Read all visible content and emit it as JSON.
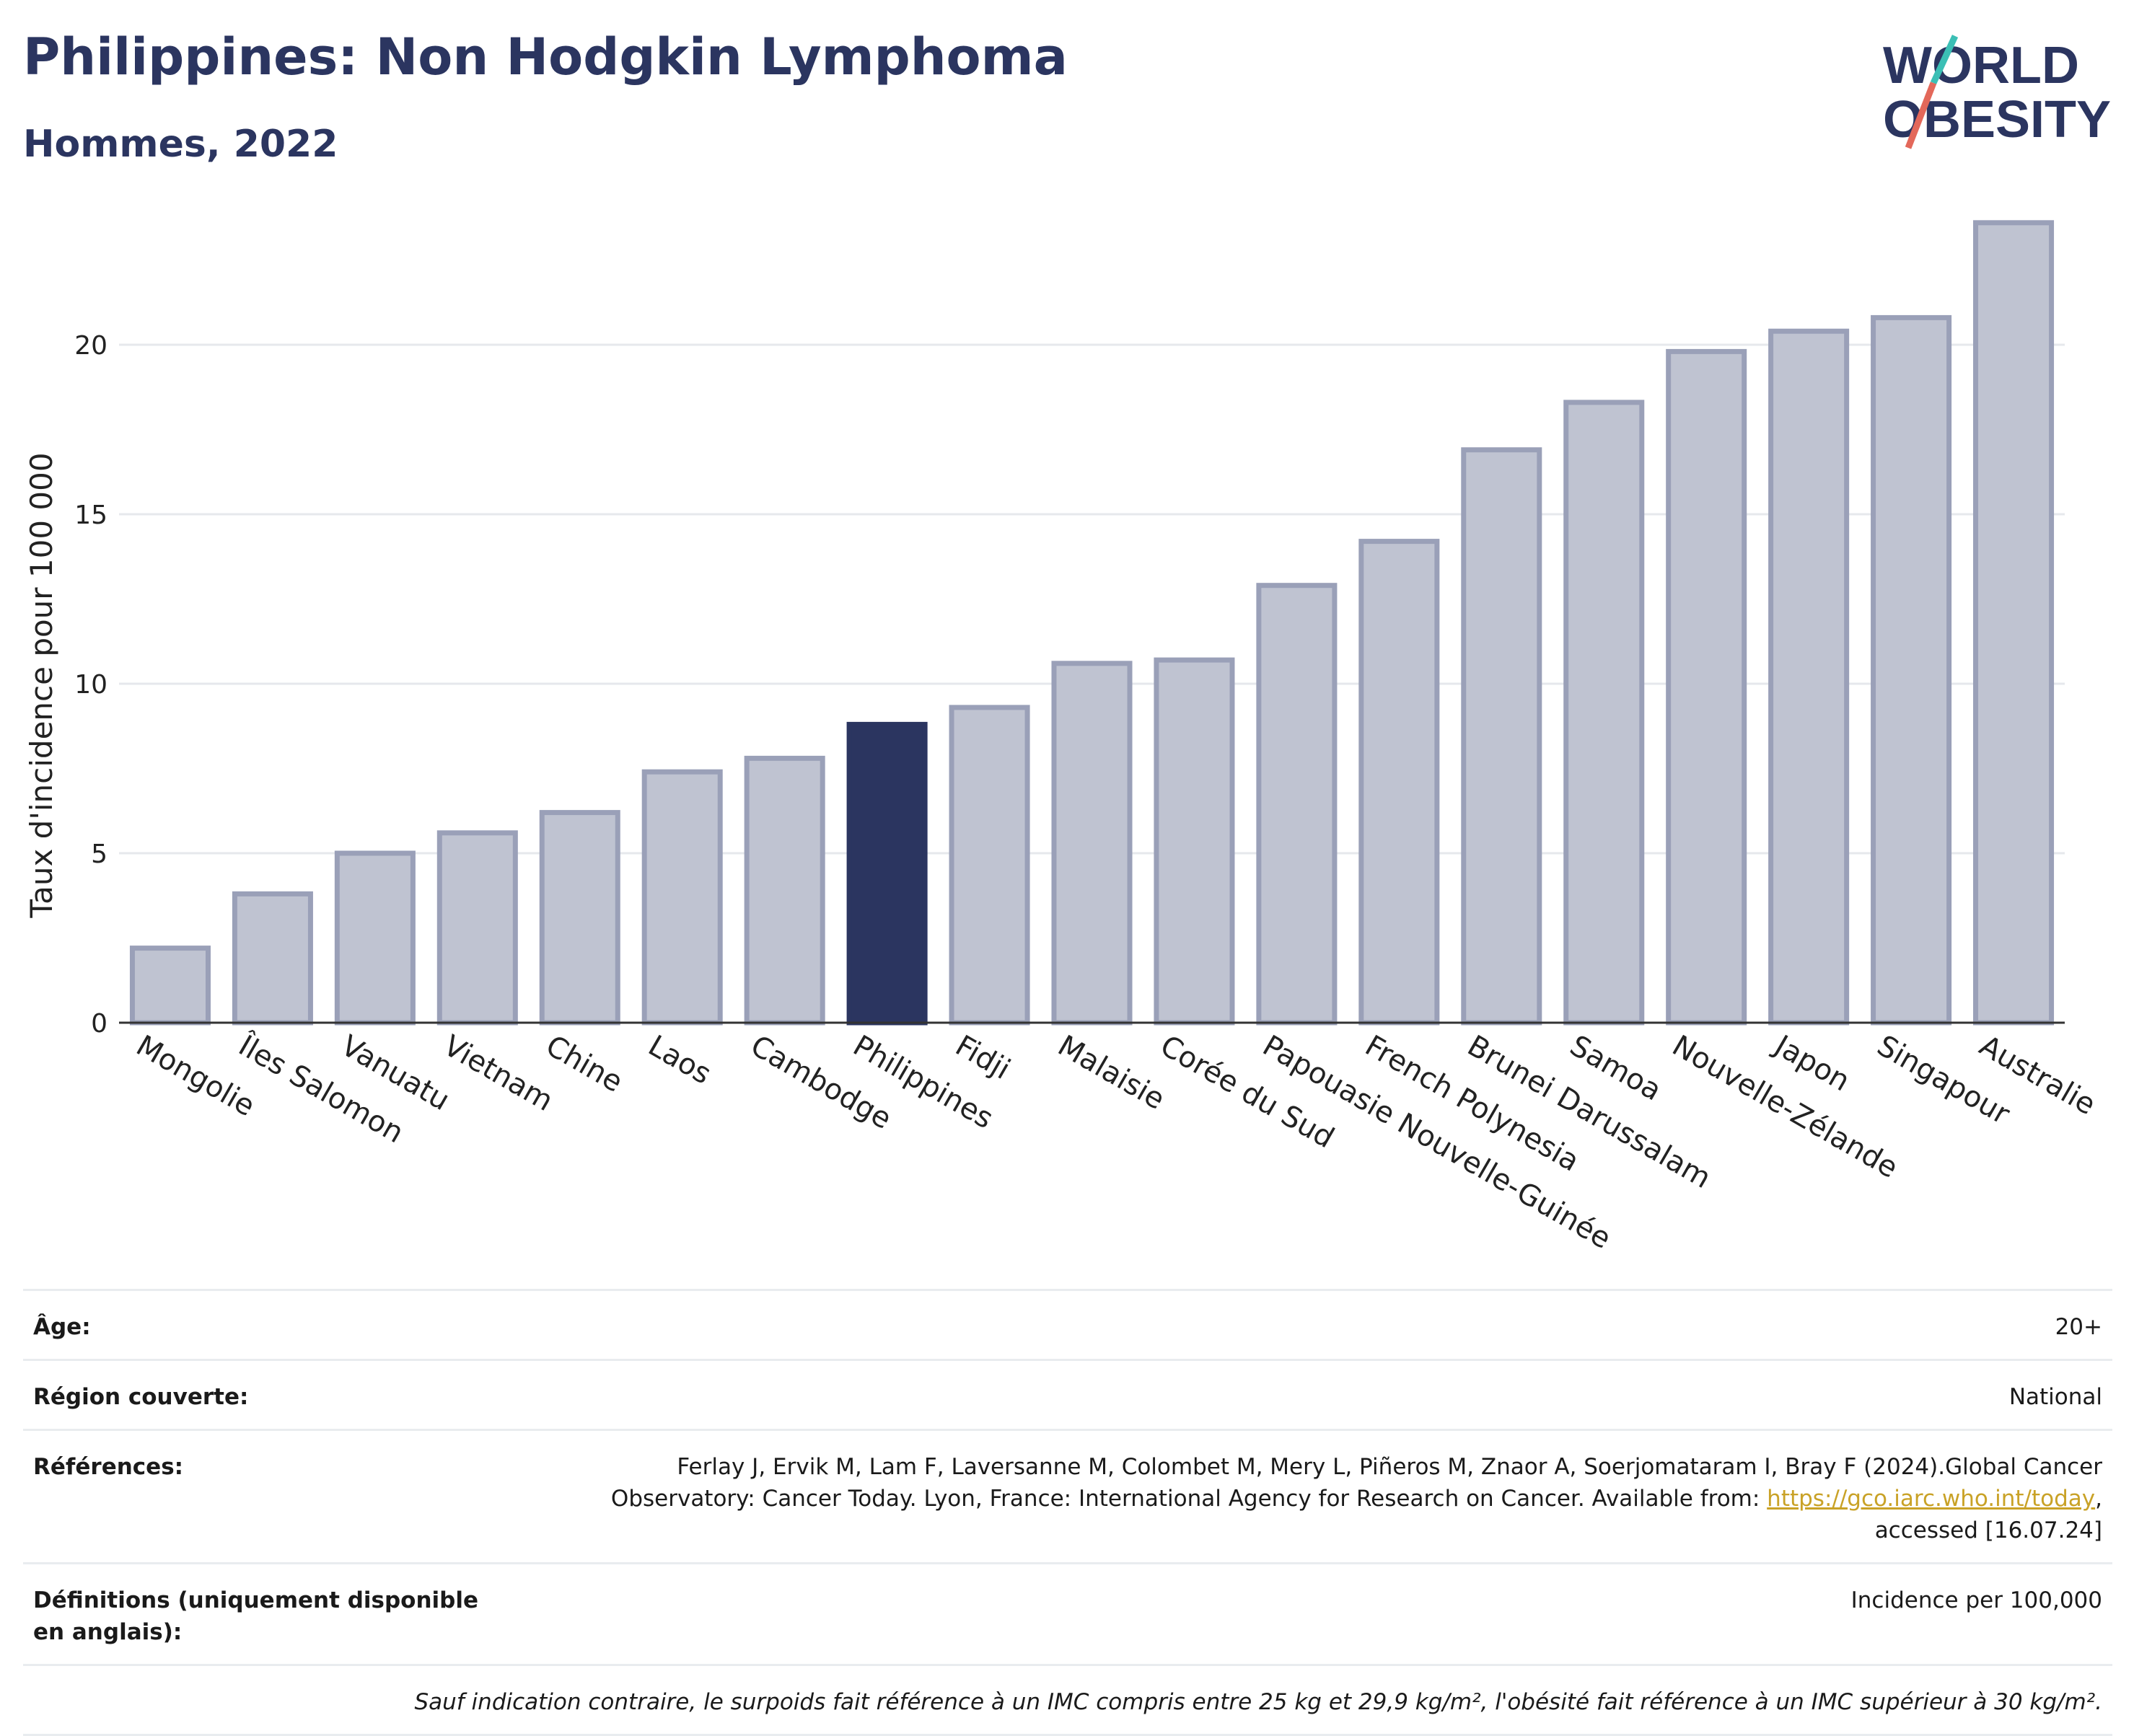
{
  "header": {
    "title": "Philippines: Non Hodgkin Lymphoma",
    "subtitle": "Hommes, 2022"
  },
  "logo": {
    "line1": "WORLD",
    "line2": "OBESITY"
  },
  "colors": {
    "highlight": "#2b3560",
    "bar": "#bfc3d1",
    "bar_stroke": "#9aa0b8",
    "title": "#2b3560",
    "link": "#c9a227"
  },
  "chart_data": {
    "type": "bar",
    "title": "Philippines: Non Hodgkin Lymphoma",
    "subtitle": "Hommes, 2022",
    "xlabel": "",
    "ylabel": "Taux d'incidence pour 100 000",
    "ylim": [
      0,
      24
    ],
    "yticks": [
      0,
      5,
      10,
      15,
      20
    ],
    "grid": true,
    "highlight": "Philippines",
    "categories": [
      "Mongolie",
      "Îles Salomon",
      "Vanuatu",
      "Vietnam",
      "Chine",
      "Laos",
      "Cambodge",
      "Philippines",
      "Fidji",
      "Malaisie",
      "Corée du Sud",
      "Papouasie Nouvelle-Guinée",
      "French Polynesia",
      "Brunei Darussalam",
      "Samoa",
      "Nouvelle-Zélande",
      "Japon",
      "Singapour",
      "Australie"
    ],
    "values": [
      2.2,
      3.8,
      5.0,
      5.6,
      6.2,
      7.4,
      7.8,
      8.8,
      9.3,
      10.6,
      10.7,
      12.9,
      14.2,
      16.9,
      18.3,
      19.8,
      20.4,
      20.8,
      23.6
    ]
  },
  "meta": {
    "age_label": "Âge:",
    "age_value": "20+",
    "region_label": "Région couverte:",
    "region_value": "National",
    "references_label": "Références:",
    "references_text_1": "Ferlay J, Ervik M, Lam F, Laversanne M, Colombet M, Mery L, Piñeros M, Znaor A, Soerjomataram I, Bray F (2024).Global Cancer",
    "references_text_2": "Observatory: Cancer Today. Lyon, France: International Agency for Research on Cancer. Available from: ",
    "references_link": "https://gco.iarc.who.int/today",
    "references_text_3": ",",
    "references_text_4": "accessed [16.07.24]",
    "definitions_label": "Définitions (uniquement disponible en anglais):",
    "definitions_value": "Incidence per 100,000",
    "note": "Sauf indication contraire, le surpoids fait référence à un IMC compris entre 25 kg et 29,9 kg/m², l'obésité fait référence à un IMC supérieur à 30 kg/m²."
  }
}
